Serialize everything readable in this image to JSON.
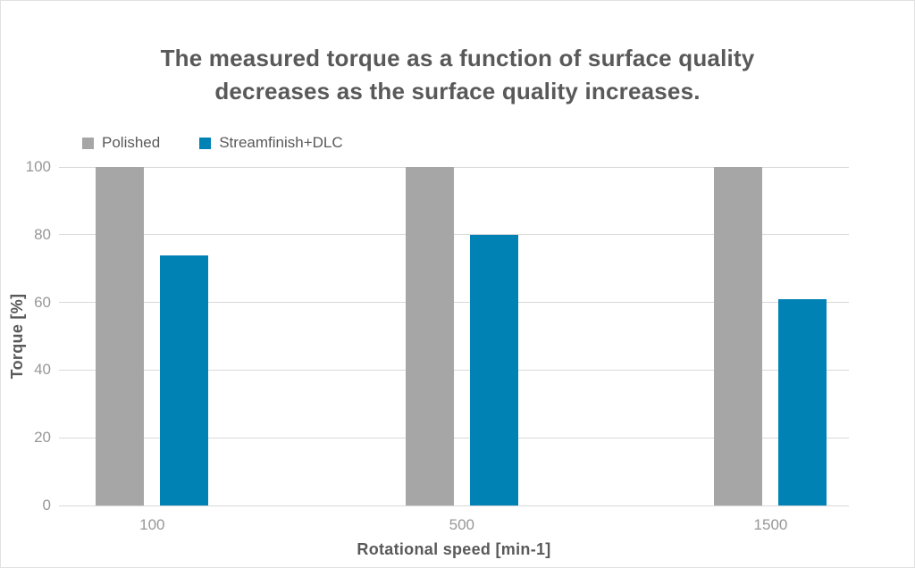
{
  "chart_data": {
    "type": "bar",
    "title": "The measured torque as a function of surface quality decreases as the surface quality increases.",
    "title_lines": [
      "The measured torque as a function of surface quality",
      "decreases as the surface quality increases."
    ],
    "categories": [
      "100",
      "500",
      "1500"
    ],
    "series": [
      {
        "name": "Polished",
        "color": "#A6A6A6",
        "values": [
          100,
          100,
          100
        ]
      },
      {
        "name": "Streamfinish+DLC",
        "color": "#0082B4",
        "values": [
          74,
          80,
          61
        ]
      }
    ],
    "xlabel": "Rotational speed [min-1]",
    "ylabel": "Torque [%]",
    "ylim": [
      0,
      100
    ],
    "yticks": [
      0,
      20,
      40,
      60,
      80,
      100
    ],
    "grid": "horizontal",
    "legend_position": "top-left",
    "group_center_fractions": [
      0.118,
      0.51,
      0.901
    ]
  }
}
